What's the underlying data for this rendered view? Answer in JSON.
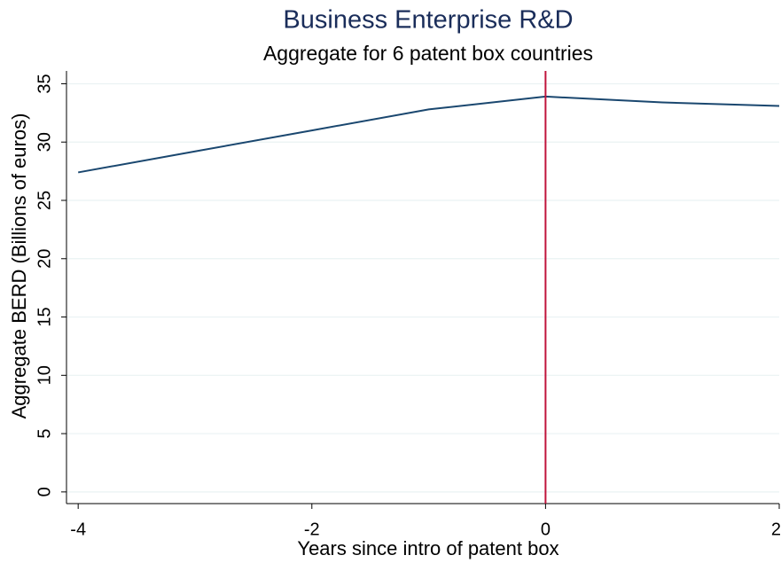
{
  "chart_data": {
    "type": "line",
    "title": "Business Enterprise R&D",
    "subtitle": "Aggregate for 6 patent box countries",
    "x_label": "Years since intro of patent box",
    "y_label": "Aggregate BERD (Billions of euros)",
    "x": [
      -4,
      -3,
      -2,
      -1,
      0,
      1,
      2
    ],
    "series": [
      {
        "name": "Aggregate BERD",
        "color": "#1a476f",
        "values": [
          27.4,
          29.2,
          31.0,
          32.8,
          33.9,
          33.4,
          33.1
        ]
      }
    ],
    "xlim": [
      -4.1,
      2.0
    ],
    "xticks": [
      -4,
      -2,
      0,
      2
    ],
    "ylim": [
      -1,
      36.1
    ],
    "yticks": [
      0,
      5,
      10,
      15,
      20,
      25,
      30,
      35
    ],
    "grid": true,
    "vline": {
      "x": 0,
      "color": "#c0143c"
    }
  }
}
